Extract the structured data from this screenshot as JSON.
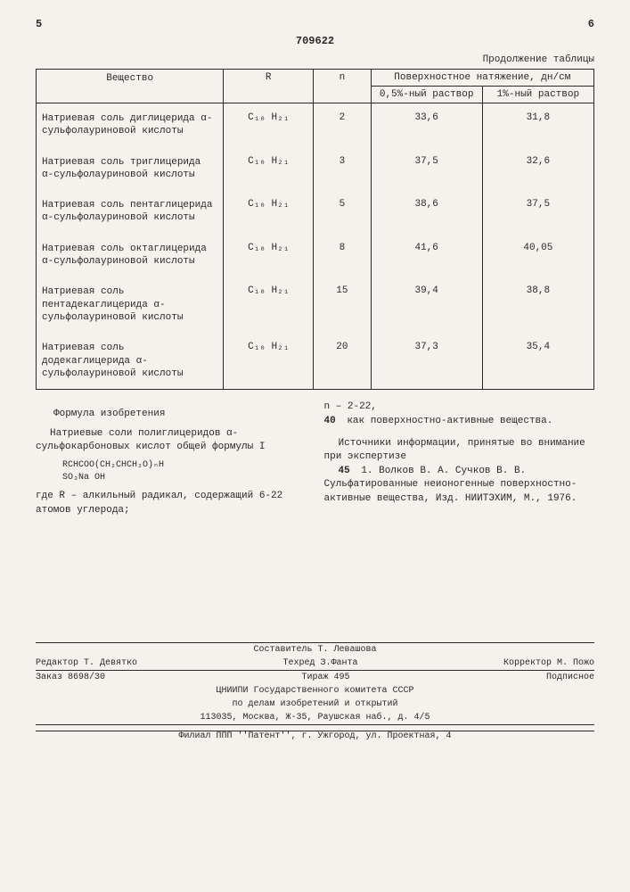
{
  "page_left": "5",
  "page_right": "6",
  "patent_number": "709622",
  "table_caption": "Продолжение таблицы",
  "headers": {
    "substance": "Вещество",
    "r": "R",
    "n": "n",
    "tension_group": "Поверхностное натяжение, дн/см",
    "col_05": "0,5%-ный раствор",
    "col_1": "1%-ный раствор"
  },
  "rows": [
    {
      "substance": "Натриевая соль диглицерида α-сульфолауриновой кислоты",
      "r": "C₁₀ H₂₁",
      "n": "2",
      "v1": "33,6",
      "v2": "31,8"
    },
    {
      "substance": "Натриевая соль триглицерида α-сульфолауриновой кислоты",
      "r": "C₁₀ H₂₁",
      "n": "3",
      "v1": "37,5",
      "v2": "32,6"
    },
    {
      "substance": "Натриевая соль пентаглицерида α-сульфолауриновой кислоты",
      "r": "C₁₀ H₂₁",
      "n": "5",
      "v1": "38,6",
      "v2": "37,5"
    },
    {
      "substance": "Натриевая соль октаглицерида α-сульфолауриновой кислоты",
      "r": "C₁₀ H₂₁",
      "n": "8",
      "v1": "41,6",
      "v2": "40,05"
    },
    {
      "substance": "Натриевая соль пентадекаглицерида α-сульфолауриновой кислоты",
      "r": "C₁₀ H₂₁",
      "n": "15",
      "v1": "39,4",
      "v2": "38,8"
    },
    {
      "substance": "Натриевая соль додекаглицерида α-сульфолауриновой кислоты",
      "r": "C₁₀ H₂₁",
      "n": "20",
      "v1": "37,3",
      "v2": "35,4"
    }
  ],
  "left_col": {
    "title": "Формула изобретения",
    "para": "Натриевые соли полиглицеридов α-сульфокарбоновых кислот общей формулы I",
    "formula_l1": "RCHCOO(CH₂CHCH₂O)ₙH",
    "formula_l2": "SO₃Na       OH",
    "where": "где R – алкильный радикал, содержащий 6-22 атомов углерода;"
  },
  "right_col": {
    "n_range": "n – 2-22,",
    "line40_text": "как поверхностно-активные вещества.",
    "sources_title": "Источники информации, принятые во внимание при экспертизе",
    "source1": "1. Волков В. А. Сучков В. В. Сульфатированные неионогенные поверхностно-активные вещества, Изд. НИИТЭХИМ, М., 1976."
  },
  "line_nums": {
    "n40": "40",
    "n45": "45"
  },
  "footer": {
    "compiler": "Составитель Т. Левашова",
    "editor": "Редактор Т. Девятко",
    "techred": "Техред З.Фанта",
    "corrector": "Корректор   М. Пожо",
    "order": "Заказ 8698/30",
    "tirage": "Тираж 495",
    "subscript": "Подписное",
    "org1": "ЦНИИПИ Государственного комитета СССР",
    "org2": "по делам изобретений и открытий",
    "address": "113035, Москва, Ж-35, Раушская наб., д. 4/5",
    "branch": "Филиал ППП ''Патент'', г. Ужгород, ул. Проектная, 4"
  }
}
